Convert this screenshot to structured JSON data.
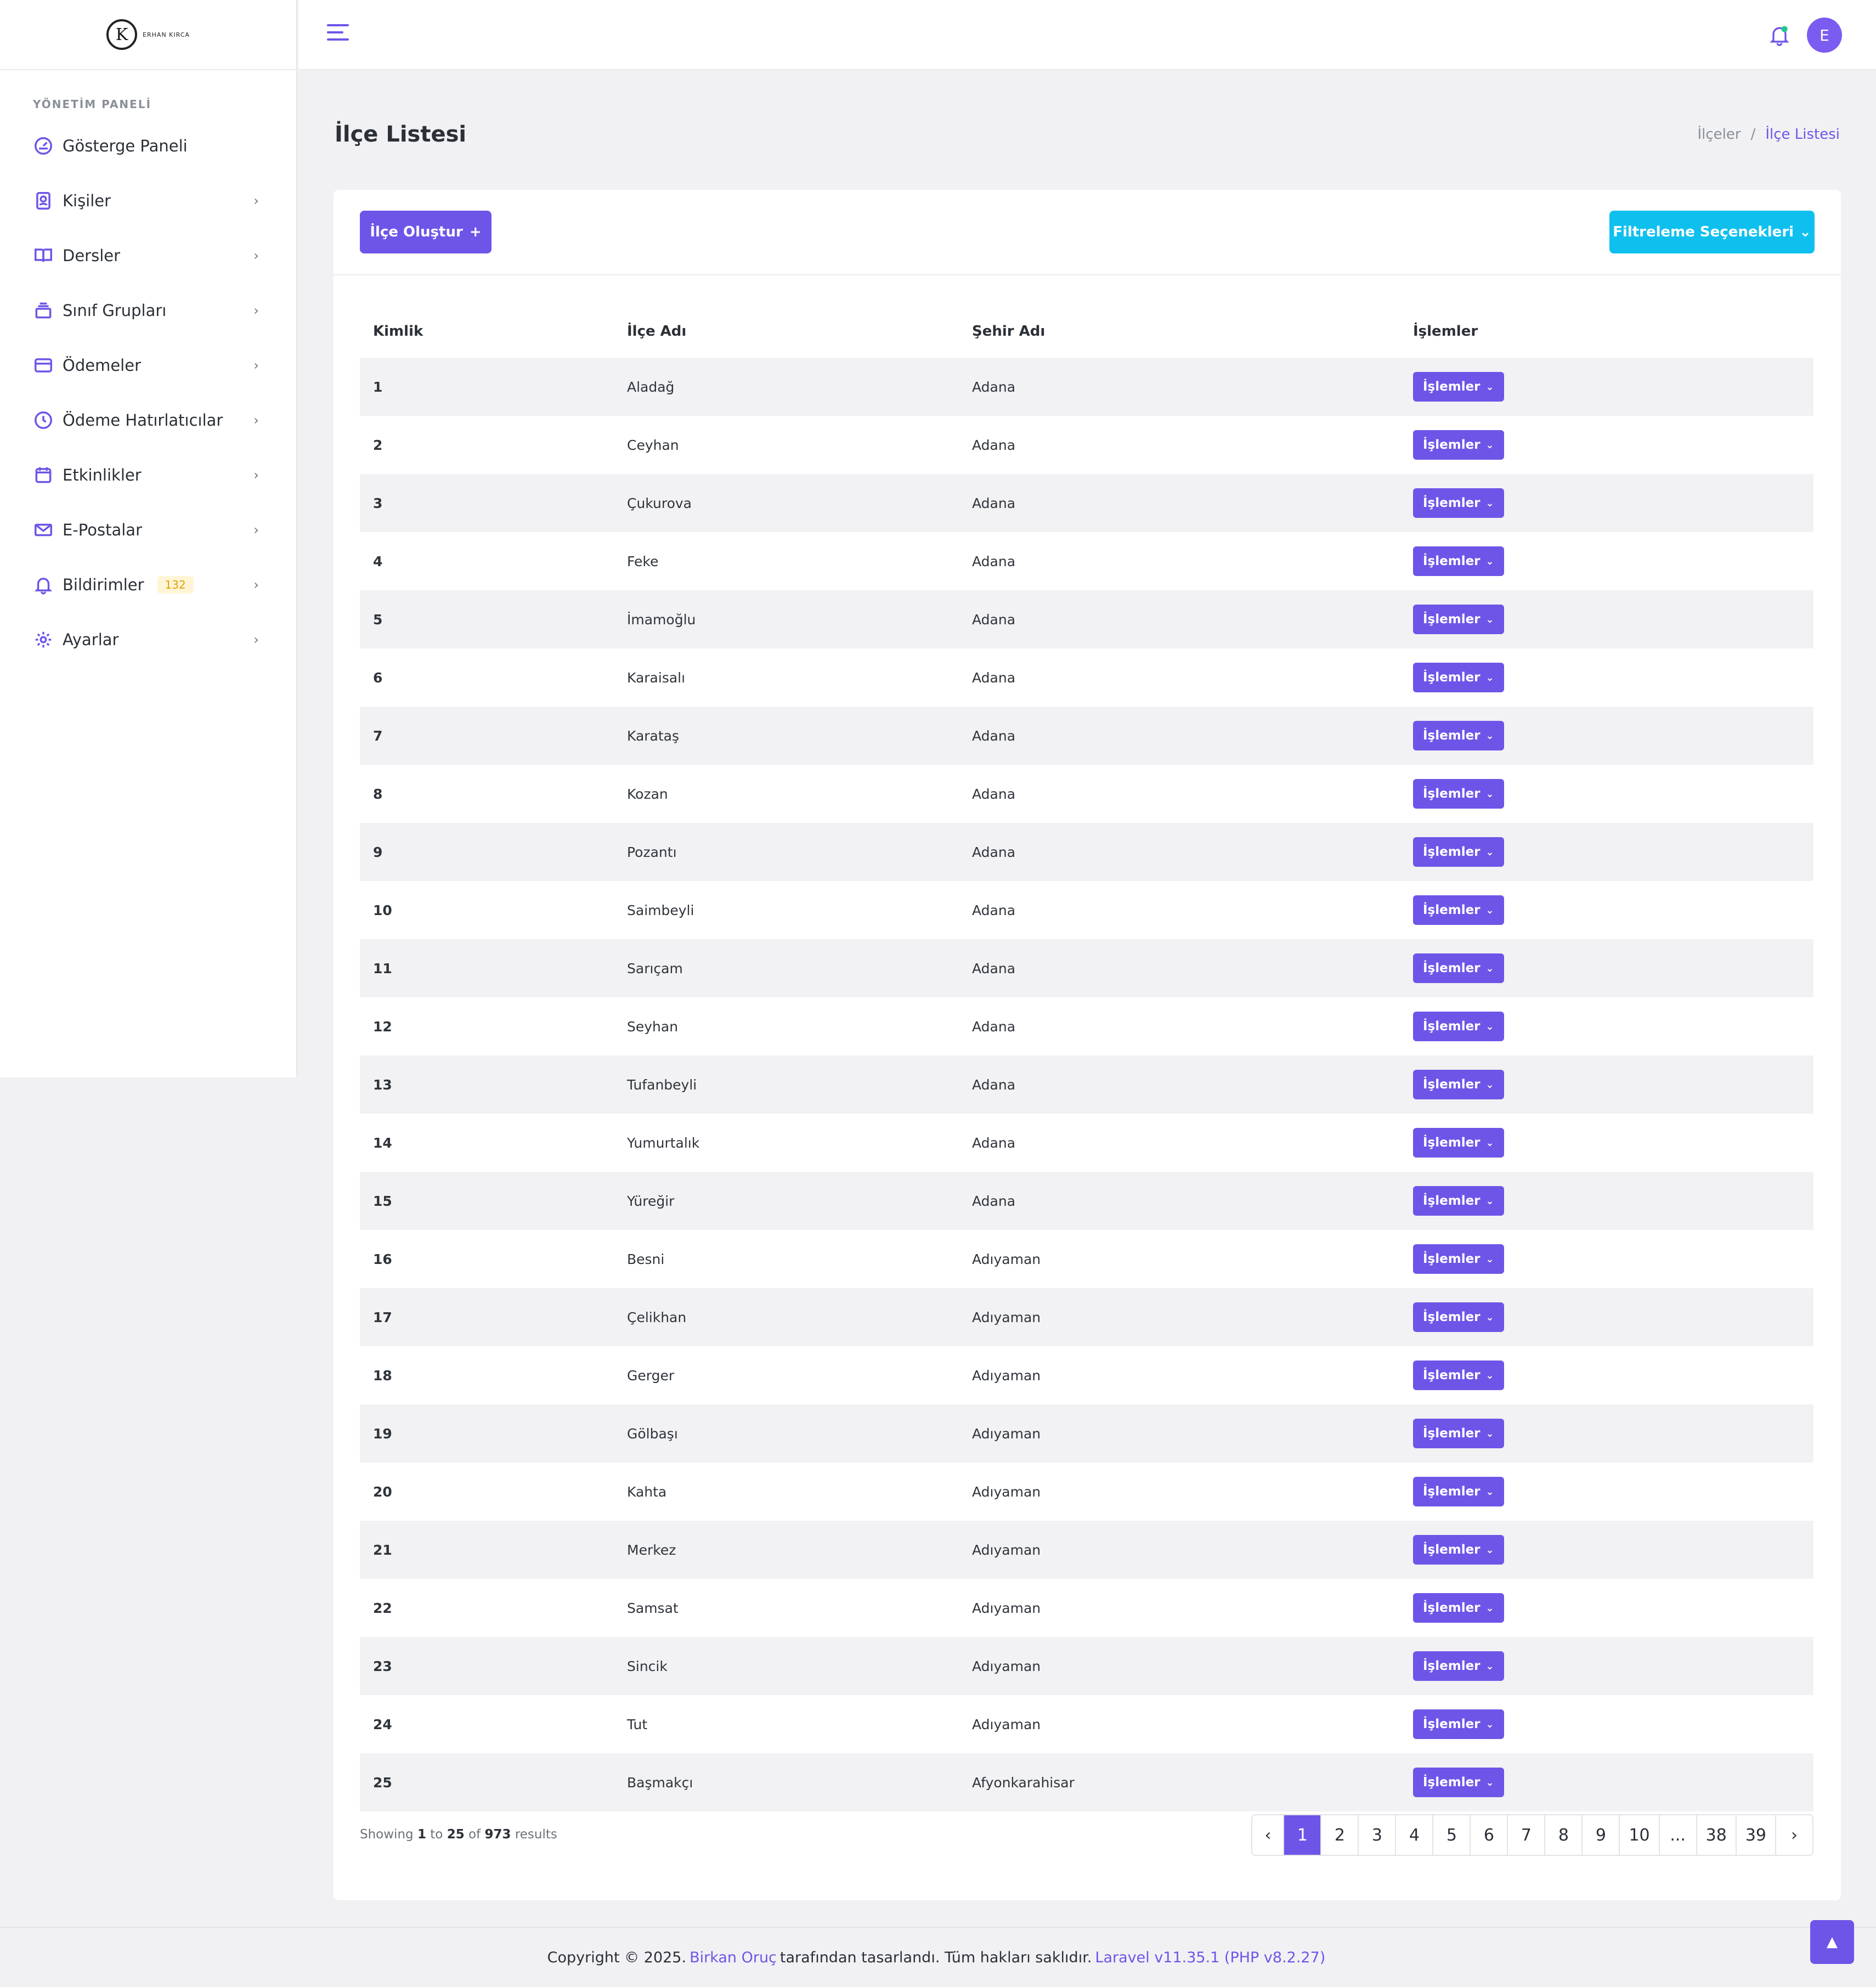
{
  "sidebar": {
    "logo_text": "ERHAN KIRCA",
    "section_title": "YÖNETİM PANELİ",
    "items": [
      {
        "label": "Gösterge Paneli",
        "icon": "dashboard-icon"
      },
      {
        "label": "Kişiler",
        "icon": "contact-icon"
      },
      {
        "label": "Dersler",
        "icon": "book-icon"
      },
      {
        "label": "Sınıf Grupları",
        "icon": "stack-icon"
      },
      {
        "label": "Ödemeler",
        "icon": "credit-card-icon"
      },
      {
        "label": "Ödeme Hatırlatıcılar",
        "icon": "clock-icon"
      },
      {
        "label": "Etkinlikler",
        "icon": "calendar-icon"
      },
      {
        "label": "E-Postalar",
        "icon": "mail-icon"
      },
      {
        "label": "Bildirimler",
        "icon": "bell-icon",
        "badge": "132"
      },
      {
        "label": "Ayarlar",
        "icon": "gear-icon"
      }
    ]
  },
  "topbar": {
    "avatar_initial": "E"
  },
  "page": {
    "title": "İlçe Listesi",
    "breadcrumb_parent": "İlçeler",
    "breadcrumb_sep": "/",
    "breadcrumb_current": "İlçe Listesi"
  },
  "toolbar": {
    "create_label": "İlçe Oluştur",
    "create_icon": "+",
    "filter_label": "Filtreleme Seçenekleri"
  },
  "table": {
    "headers": [
      "Kimlik",
      "İlçe Adı",
      "Şehir Adı",
      "İşlemler"
    ],
    "action_label": "İşlemler",
    "rows": [
      [
        "1",
        "Aladağ",
        "Adana"
      ],
      [
        "2",
        "Ceyhan",
        "Adana"
      ],
      [
        "3",
        "Çukurova",
        "Adana"
      ],
      [
        "4",
        "Feke",
        "Adana"
      ],
      [
        "5",
        "İmamoğlu",
        "Adana"
      ],
      [
        "6",
        "Karaisalı",
        "Adana"
      ],
      [
        "7",
        "Karataş",
        "Adana"
      ],
      [
        "8",
        "Kozan",
        "Adana"
      ],
      [
        "9",
        "Pozantı",
        "Adana"
      ],
      [
        "10",
        "Saimbeyli",
        "Adana"
      ],
      [
        "11",
        "Sarıçam",
        "Adana"
      ],
      [
        "12",
        "Seyhan",
        "Adana"
      ],
      [
        "13",
        "Tufanbeyli",
        "Adana"
      ],
      [
        "14",
        "Yumurtalık",
        "Adana"
      ],
      [
        "15",
        "Yüreğir",
        "Adana"
      ],
      [
        "16",
        "Besni",
        "Adıyaman"
      ],
      [
        "17",
        "Çelikhan",
        "Adıyaman"
      ],
      [
        "18",
        "Gerger",
        "Adıyaman"
      ],
      [
        "19",
        "Gölbaşı",
        "Adıyaman"
      ],
      [
        "20",
        "Kahta",
        "Adıyaman"
      ],
      [
        "21",
        "Merkez",
        "Adıyaman"
      ],
      [
        "22",
        "Samsat",
        "Adıyaman"
      ],
      [
        "23",
        "Sincik",
        "Adıyaman"
      ],
      [
        "24",
        "Tut",
        "Adıyaman"
      ],
      [
        "25",
        "Başmakçı",
        "Afyonkarahisar"
      ]
    ]
  },
  "pagination": {
    "showing_prefix": "Showing",
    "from": "1",
    "to_word": "to",
    "to": "25",
    "of_word": "of",
    "total": "973",
    "results_word": "results",
    "pages": [
      "‹",
      "1",
      "2",
      "3",
      "4",
      "5",
      "6",
      "7",
      "8",
      "9",
      "10",
      "...",
      "38",
      "39",
      "›"
    ],
    "current": "1"
  },
  "footer": {
    "prefix": "Copyright © 2025.",
    "author": "Birkan Oruç",
    "middle": "tarafından tasarlandı. Tüm hakları saklıdır.",
    "version": "Laravel v11.35.1 (PHP v8.2.27)"
  },
  "colors": {
    "primary": "#6e55e8",
    "info": "#0fc0ee",
    "badge_bg": "#fff5d6",
    "badge_text": "#e2a100"
  }
}
